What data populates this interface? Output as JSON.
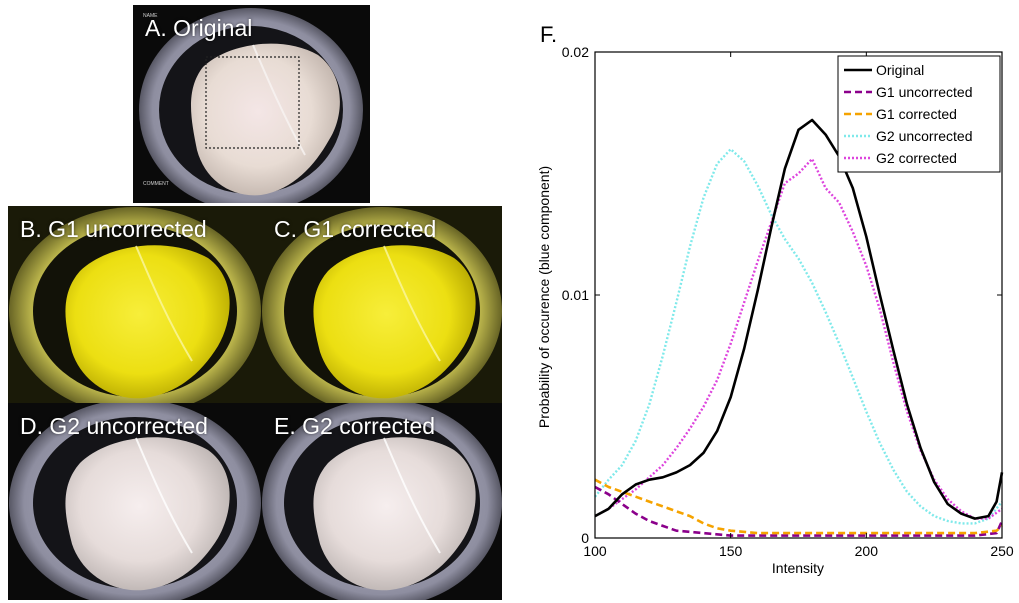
{
  "panels": {
    "a": {
      "label": "A. Original"
    },
    "b": {
      "label": "B. G1 uncorrected"
    },
    "c": {
      "label": "C. G1 corrected"
    },
    "d": {
      "label": "D. G2 uncorrected"
    },
    "e": {
      "label": "E. G2 corrected"
    }
  },
  "colors": {
    "original": "#000000",
    "g1_uncorrected": "#8b008b",
    "g1_corrected": "#f5a300",
    "g2_uncorrected": "#7fe9ea",
    "g2_corrected": "#dd44dd",
    "yellow_tint": "#e8e200"
  },
  "chart_data": {
    "type": "line",
    "panel_label": "F.",
    "xlabel": "Intensity",
    "ylabel": "Probability of occurence (blue component)",
    "xlim": [
      100,
      250
    ],
    "ylim": [
      0,
      0.02
    ],
    "x_ticks": [
      "100",
      "150",
      "200",
      "250"
    ],
    "y_ticks": [
      "0",
      "0.01",
      "0.02"
    ],
    "grid": false,
    "legend_position": "top-right",
    "series": [
      {
        "name": "Original",
        "style": "solid",
        "x": [
          100,
          105,
          110,
          115,
          120,
          125,
          130,
          135,
          140,
          145,
          150,
          155,
          160,
          165,
          170,
          175,
          180,
          185,
          190,
          195,
          200,
          205,
          210,
          215,
          220,
          225,
          230,
          235,
          240,
          245,
          248,
          250
        ],
        "y": [
          0.0009,
          0.0012,
          0.0018,
          0.0022,
          0.0024,
          0.0025,
          0.0027,
          0.003,
          0.0035,
          0.0044,
          0.0058,
          0.0078,
          0.0102,
          0.0128,
          0.0152,
          0.0168,
          0.0172,
          0.0166,
          0.0157,
          0.0144,
          0.0124,
          0.01,
          0.0077,
          0.0055,
          0.0037,
          0.0023,
          0.0014,
          0.001,
          0.0008,
          0.0009,
          0.0015,
          0.0027
        ]
      },
      {
        "name": "G1 uncorrected",
        "style": "dashed",
        "x": [
          100,
          105,
          110,
          115,
          120,
          125,
          130,
          140,
          150,
          160,
          180,
          200,
          220,
          240,
          248,
          250
        ],
        "y": [
          0.0021,
          0.0018,
          0.0014,
          0.001,
          0.0007,
          0.0005,
          0.0003,
          0.0002,
          0.0001,
          0.0001,
          0.0001,
          0.0001,
          0.0001,
          0.0001,
          0.0002,
          0.0007
        ]
      },
      {
        "name": "G1 corrected",
        "style": "dashed",
        "x": [
          100,
          105,
          110,
          115,
          120,
          125,
          130,
          135,
          140,
          145,
          150,
          160,
          180,
          200,
          220,
          240,
          248,
          250
        ],
        "y": [
          0.0024,
          0.0021,
          0.0019,
          0.0017,
          0.0015,
          0.0013,
          0.0011,
          0.0009,
          0.0006,
          0.0004,
          0.0003,
          0.0002,
          0.0002,
          0.0002,
          0.0002,
          0.0002,
          0.0003,
          0.0005
        ]
      },
      {
        "name": "G2 uncorrected",
        "style": "dotted",
        "x": [
          100,
          105,
          110,
          115,
          120,
          125,
          130,
          135,
          140,
          145,
          150,
          155,
          160,
          165,
          170,
          175,
          180,
          185,
          190,
          195,
          200,
          205,
          210,
          215,
          220,
          225,
          230,
          235,
          240,
          245,
          250
        ],
        "y": [
          0.0017,
          0.0024,
          0.003,
          0.004,
          0.0055,
          0.0075,
          0.0097,
          0.012,
          0.014,
          0.0154,
          0.016,
          0.0155,
          0.0145,
          0.0133,
          0.0123,
          0.0115,
          0.0105,
          0.0093,
          0.008,
          0.0066,
          0.0052,
          0.0039,
          0.0028,
          0.0019,
          0.0013,
          0.0009,
          0.0007,
          0.0006,
          0.0006,
          0.0008,
          0.0015
        ]
      },
      {
        "name": "G2 corrected",
        "style": "dotted",
        "x": [
          100,
          105,
          110,
          115,
          120,
          125,
          130,
          135,
          140,
          145,
          150,
          155,
          160,
          165,
          170,
          175,
          180,
          185,
          190,
          195,
          200,
          205,
          210,
          215,
          220,
          225,
          230,
          235,
          240,
          245,
          250
        ],
        "y": [
          0.0009,
          0.0012,
          0.0016,
          0.002,
          0.0025,
          0.003,
          0.0037,
          0.0045,
          0.0054,
          0.0065,
          0.008,
          0.0097,
          0.0114,
          0.013,
          0.0146,
          0.015,
          0.0156,
          0.0144,
          0.0138,
          0.0126,
          0.0112,
          0.0094,
          0.0072,
          0.0052,
          0.0036,
          0.0024,
          0.0016,
          0.0011,
          0.0008,
          0.0008,
          0.0012
        ]
      }
    ]
  }
}
